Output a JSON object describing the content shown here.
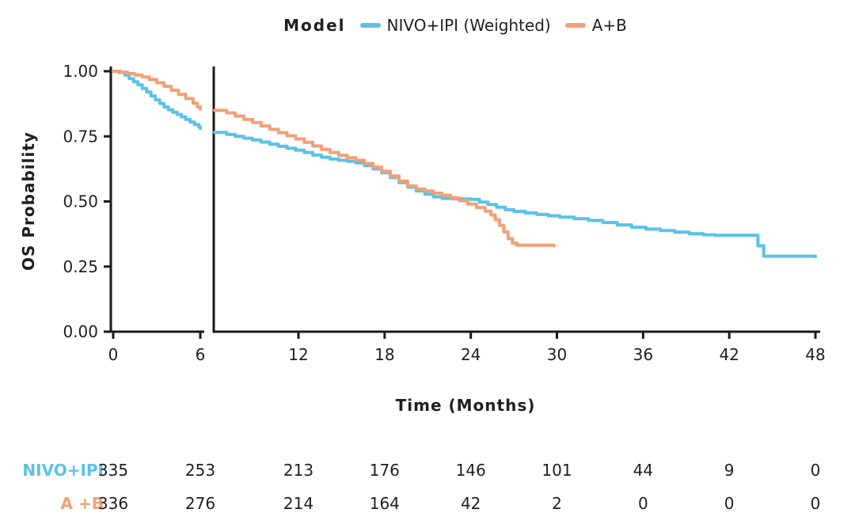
{
  "legend": {
    "title": "Model"
  },
  "chart_data": {
    "type": "line",
    "subtype": "kaplan-meier-step",
    "title": "",
    "xlabel": "Time (Months)",
    "ylabel": "OS Probability",
    "ylim": [
      0,
      1
    ],
    "grid": false,
    "legend_position": "top-center",
    "x_axis_break": {
      "left_panel_range": [
        0,
        6
      ],
      "right_panel_range": [
        6.1,
        48
      ]
    },
    "x_ticks": [
      {
        "v": 0,
        "label": "0"
      },
      {
        "v": 6,
        "label": "6"
      },
      {
        "v": 12,
        "label": "12"
      },
      {
        "v": 18,
        "label": "18"
      },
      {
        "v": 24,
        "label": "24"
      },
      {
        "v": 30,
        "label": "30"
      },
      {
        "v": 36,
        "label": "36"
      },
      {
        "v": 42,
        "label": "42"
      },
      {
        "v": 48,
        "label": "48"
      }
    ],
    "y_ticks": [
      {
        "v": 0.0,
        "label": "0.00"
      },
      {
        "v": 0.25,
        "label": "0.25"
      },
      {
        "v": 0.5,
        "label": "0.50"
      },
      {
        "v": 0.75,
        "label": "0.75"
      },
      {
        "v": 1.0,
        "label": "1.00"
      }
    ],
    "series": [
      {
        "name": "NIVO+IPI (Weighted)",
        "color": "#5bc2e7",
        "points": [
          [
            0,
            1.0
          ],
          [
            0.4,
            0.995
          ],
          [
            0.8,
            0.985
          ],
          [
            1.1,
            0.972
          ],
          [
            1.4,
            0.96
          ],
          [
            1.7,
            0.948
          ],
          [
            2.0,
            0.934
          ],
          [
            2.3,
            0.92
          ],
          [
            2.6,
            0.905
          ],
          [
            2.9,
            0.89
          ],
          [
            3.2,
            0.876
          ],
          [
            3.5,
            0.863
          ],
          [
            3.8,
            0.852
          ],
          [
            4.1,
            0.843
          ],
          [
            4.4,
            0.834
          ],
          [
            4.7,
            0.825
          ],
          [
            5.0,
            0.815
          ],
          [
            5.3,
            0.805
          ],
          [
            5.6,
            0.795
          ],
          [
            5.9,
            0.786
          ],
          [
            6.0,
            0.78
          ],
          [
            6.15,
            0.765
          ],
          [
            7.0,
            0.757
          ],
          [
            7.6,
            0.75
          ],
          [
            8.2,
            0.743
          ],
          [
            8.8,
            0.736
          ],
          [
            9.4,
            0.728
          ],
          [
            10.0,
            0.72
          ],
          [
            10.6,
            0.712
          ],
          [
            11.2,
            0.704
          ],
          [
            11.8,
            0.697
          ],
          [
            12.4,
            0.688
          ],
          [
            13.0,
            0.678
          ],
          [
            13.6,
            0.67
          ],
          [
            14.2,
            0.663
          ],
          [
            14.8,
            0.658
          ],
          [
            15.4,
            0.654
          ],
          [
            16.0,
            0.648
          ],
          [
            16.6,
            0.638
          ],
          [
            17.2,
            0.625
          ],
          [
            17.8,
            0.61
          ],
          [
            18.4,
            0.592
          ],
          [
            19.0,
            0.572
          ],
          [
            19.6,
            0.555
          ],
          [
            20.2,
            0.54
          ],
          [
            20.8,
            0.528
          ],
          [
            21.4,
            0.518
          ],
          [
            22.0,
            0.512
          ],
          [
            22.6,
            0.51
          ],
          [
            24.0,
            0.508
          ],
          [
            24.6,
            0.498
          ],
          [
            25.2,
            0.488
          ],
          [
            25.8,
            0.478
          ],
          [
            26.4,
            0.468
          ],
          [
            27.0,
            0.462
          ],
          [
            27.8,
            0.456
          ],
          [
            28.6,
            0.45
          ],
          [
            29.4,
            0.445
          ],
          [
            30.2,
            0.44
          ],
          [
            31.2,
            0.434
          ],
          [
            32.2,
            0.427
          ],
          [
            33.2,
            0.419
          ],
          [
            34.2,
            0.41
          ],
          [
            35.2,
            0.401
          ],
          [
            36.2,
            0.394
          ],
          [
            37.2,
            0.388
          ],
          [
            38.2,
            0.382
          ],
          [
            39.2,
            0.376
          ],
          [
            40.2,
            0.372
          ],
          [
            41.0,
            0.37
          ],
          [
            43.6,
            0.37
          ],
          [
            44.0,
            0.33
          ],
          [
            44.4,
            0.29
          ],
          [
            48.0,
            0.288
          ]
        ]
      },
      {
        "name": "A+B",
        "color": "#f2a077",
        "points": [
          [
            0,
            1.0
          ],
          [
            0.5,
            0.996
          ],
          [
            1.0,
            0.991
          ],
          [
            1.5,
            0.985
          ],
          [
            2.0,
            0.978
          ],
          [
            2.5,
            0.968
          ],
          [
            3.0,
            0.956
          ],
          [
            3.5,
            0.942
          ],
          [
            4.0,
            0.927
          ],
          [
            4.5,
            0.911
          ],
          [
            5.0,
            0.895
          ],
          [
            5.5,
            0.877
          ],
          [
            5.8,
            0.863
          ],
          [
            6.0,
            0.855
          ],
          [
            6.15,
            0.85
          ],
          [
            7.0,
            0.84
          ],
          [
            7.6,
            0.828
          ],
          [
            8.2,
            0.815
          ],
          [
            8.8,
            0.803
          ],
          [
            9.4,
            0.79
          ],
          [
            10.0,
            0.777
          ],
          [
            10.6,
            0.764
          ],
          [
            11.2,
            0.752
          ],
          [
            11.8,
            0.74
          ],
          [
            12.4,
            0.727
          ],
          [
            13.0,
            0.713
          ],
          [
            13.6,
            0.7
          ],
          [
            14.2,
            0.688
          ],
          [
            14.8,
            0.677
          ],
          [
            15.4,
            0.668
          ],
          [
            16.0,
            0.658
          ],
          [
            16.6,
            0.646
          ],
          [
            17.2,
            0.632
          ],
          [
            17.8,
            0.616
          ],
          [
            18.4,
            0.598
          ],
          [
            19.0,
            0.578
          ],
          [
            19.6,
            0.56
          ],
          [
            20.2,
            0.548
          ],
          [
            20.8,
            0.54
          ],
          [
            21.4,
            0.532
          ],
          [
            22.0,
            0.524
          ],
          [
            22.6,
            0.514
          ],
          [
            23.2,
            0.503
          ],
          [
            23.8,
            0.49
          ],
          [
            24.4,
            0.477
          ],
          [
            25.0,
            0.463
          ],
          [
            25.4,
            0.448
          ],
          [
            25.7,
            0.43
          ],
          [
            26.0,
            0.408
          ],
          [
            26.3,
            0.383
          ],
          [
            26.6,
            0.357
          ],
          [
            26.9,
            0.34
          ],
          [
            27.2,
            0.332
          ],
          [
            29.8,
            0.33
          ]
        ]
      }
    ]
  },
  "risk_table": {
    "time_points": [
      0,
      6,
      12,
      18,
      24,
      30,
      36,
      42,
      48
    ],
    "rows": [
      {
        "label": "NIVO+IPI",
        "color": "#5bc2e7",
        "values": [
          "335",
          "253",
          "213",
          "176",
          "146",
          "101",
          "44",
          "9",
          "0"
        ]
      },
      {
        "label": "A +B",
        "color": "#f2a077",
        "values": [
          "336",
          "276",
          "214",
          "164",
          "42",
          "2",
          "0",
          "0",
          "0"
        ]
      }
    ]
  },
  "colors": {
    "axis": "#1a1a1a",
    "text": "#1f1f1f"
  }
}
